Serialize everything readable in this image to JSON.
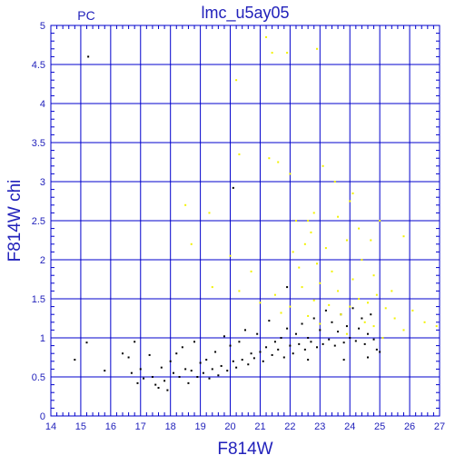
{
  "chart_data": {
    "type": "scatter",
    "title": "lmc_u5ay05",
    "corner_label": "PC",
    "xlabel": "F814W",
    "ylabel": "F814W  chi",
    "xlim": [
      14,
      27
    ],
    "ylim": [
      0,
      5
    ],
    "x_ticks": [
      "14",
      "15",
      "16",
      "17",
      "18",
      "19",
      "20",
      "21",
      "22",
      "23",
      "24",
      "25",
      "26",
      "27"
    ],
    "y_ticks": [
      "0",
      "0.5",
      "1",
      "1.5",
      "2",
      "2.5",
      "3",
      "3.5",
      "4",
      "4.5",
      "5"
    ],
    "grid": true,
    "colors": {
      "frame": "#0000cc",
      "label": "#2222bb",
      "series_black": "#000000",
      "series_yellow": "#f2f200"
    },
    "series": [
      {
        "color": "#000000",
        "points": [
          [
            15.25,
            4.6
          ],
          [
            20.1,
            2.92
          ],
          [
            15.2,
            0.94
          ],
          [
            14.8,
            0.72
          ],
          [
            15.8,
            0.58
          ],
          [
            16.4,
            0.8
          ],
          [
            16.6,
            0.75
          ],
          [
            16.8,
            0.95
          ],
          [
            16.7,
            0.55
          ],
          [
            16.9,
            0.42
          ],
          [
            17.0,
            0.6
          ],
          [
            17.1,
            0.48
          ],
          [
            17.3,
            0.78
          ],
          [
            17.4,
            0.5
          ],
          [
            17.5,
            0.4
          ],
          [
            17.6,
            0.36
          ],
          [
            17.7,
            0.62
          ],
          [
            17.8,
            0.45
          ],
          [
            17.9,
            0.33
          ],
          [
            18.0,
            0.7
          ],
          [
            18.1,
            0.55
          ],
          [
            18.2,
            0.8
          ],
          [
            18.3,
            0.5
          ],
          [
            18.4,
            0.88
          ],
          [
            18.5,
            0.6
          ],
          [
            18.6,
            0.42
          ],
          [
            18.7,
            0.58
          ],
          [
            18.8,
            0.95
          ],
          [
            18.9,
            0.5
          ],
          [
            19.0,
            0.68
          ],
          [
            19.1,
            0.55
          ],
          [
            19.2,
            0.72
          ],
          [
            19.3,
            0.48
          ],
          [
            19.4,
            0.6
          ],
          [
            19.5,
            0.82
          ],
          [
            19.6,
            0.52
          ],
          [
            19.7,
            0.64
          ],
          [
            19.8,
            1.02
          ],
          [
            19.9,
            0.58
          ],
          [
            20.0,
            0.9
          ],
          [
            20.1,
            0.7
          ],
          [
            20.2,
            0.62
          ],
          [
            20.3,
            0.95
          ],
          [
            20.4,
            0.72
          ],
          [
            20.5,
            1.1
          ],
          [
            20.6,
            0.66
          ],
          [
            20.7,
            0.8
          ],
          [
            20.8,
            0.74
          ],
          [
            20.9,
            1.05
          ],
          [
            21.0,
            0.82
          ],
          [
            21.1,
            0.7
          ],
          [
            21.2,
            0.88
          ],
          [
            21.3,
            1.22
          ],
          [
            21.4,
            0.78
          ],
          [
            21.5,
            0.95
          ],
          [
            21.6,
            0.85
          ],
          [
            21.7,
            1.0
          ],
          [
            21.8,
            0.75
          ],
          [
            21.9,
            1.12
          ],
          [
            22.0,
            0.9
          ],
          [
            22.1,
            0.8
          ],
          [
            22.2,
            1.05
          ],
          [
            22.3,
            0.92
          ],
          [
            22.4,
            1.18
          ],
          [
            22.5,
            0.85
          ],
          [
            22.6,
            1.0
          ],
          [
            22.7,
            0.95
          ],
          [
            22.8,
            1.25
          ],
          [
            22.9,
            0.88
          ],
          [
            23.0,
            1.1
          ],
          [
            23.1,
            0.92
          ],
          [
            23.2,
            1.35
          ],
          [
            23.3,
            0.98
          ],
          [
            23.4,
            1.2
          ],
          [
            23.5,
            0.9
          ],
          [
            23.6,
            1.08
          ],
          [
            23.7,
            1.3
          ],
          [
            23.8,
            0.94
          ],
          [
            23.9,
            1.15
          ],
          [
            24.0,
            1.0
          ],
          [
            24.1,
            1.38
          ],
          [
            24.2,
            0.96
          ],
          [
            24.3,
            1.12
          ],
          [
            24.4,
            1.25
          ],
          [
            24.5,
            0.92
          ],
          [
            24.6,
            1.05
          ],
          [
            24.7,
            1.3
          ],
          [
            24.8,
            0.98
          ],
          [
            24.9,
            0.85
          ],
          [
            25.0,
            0.82
          ],
          [
            21.9,
            1.65
          ],
          [
            22.6,
            0.72
          ],
          [
            23.8,
            0.72
          ],
          [
            24.6,
            0.75
          ]
        ]
      },
      {
        "color": "#f2f200",
        "points": [
          [
            21.2,
            4.85
          ],
          [
            21.9,
            4.65
          ],
          [
            22.9,
            4.7
          ],
          [
            21.4,
            4.65
          ],
          [
            20.2,
            4.3
          ],
          [
            20.3,
            3.35
          ],
          [
            21.3,
            3.3
          ],
          [
            21.6,
            3.25
          ],
          [
            22.0,
            3.1
          ],
          [
            23.1,
            3.2
          ],
          [
            23.5,
            3.0
          ],
          [
            24.1,
            2.85
          ],
          [
            24.0,
            2.75
          ],
          [
            18.5,
            2.7
          ],
          [
            19.3,
            2.6
          ],
          [
            22.2,
            2.5
          ],
          [
            22.6,
            2.5
          ],
          [
            22.8,
            2.6
          ],
          [
            23.6,
            2.55
          ],
          [
            24.3,
            2.4
          ],
          [
            25.0,
            2.5
          ],
          [
            25.8,
            2.3
          ],
          [
            18.7,
            2.2
          ],
          [
            20.0,
            2.05
          ],
          [
            22.1,
            2.1
          ],
          [
            22.5,
            2.2
          ],
          [
            22.7,
            2.35
          ],
          [
            23.2,
            2.15
          ],
          [
            23.9,
            2.25
          ],
          [
            24.4,
            2.0
          ],
          [
            24.7,
            2.25
          ],
          [
            20.7,
            1.85
          ],
          [
            22.3,
            1.9
          ],
          [
            22.9,
            1.95
          ],
          [
            23.4,
            1.85
          ],
          [
            24.1,
            1.75
          ],
          [
            24.8,
            1.8
          ],
          [
            19.4,
            1.65
          ],
          [
            20.3,
            1.6
          ],
          [
            21.5,
            1.55
          ],
          [
            22.4,
            1.65
          ],
          [
            23.0,
            1.7
          ],
          [
            23.6,
            1.6
          ],
          [
            24.3,
            1.5
          ],
          [
            24.9,
            1.55
          ],
          [
            25.4,
            1.6
          ],
          [
            21.0,
            1.45
          ],
          [
            22.0,
            1.4
          ],
          [
            22.8,
            1.48
          ],
          [
            23.3,
            1.42
          ],
          [
            24.0,
            1.4
          ],
          [
            24.6,
            1.45
          ],
          [
            25.2,
            1.38
          ],
          [
            26.1,
            1.35
          ],
          [
            26.5,
            1.2
          ],
          [
            26.9,
            1.15
          ],
          [
            25.8,
            1.1
          ],
          [
            25.5,
            1.25
          ],
          [
            23.7,
            1.3
          ],
          [
            24.5,
            1.2
          ],
          [
            22.6,
            1.28
          ],
          [
            21.7,
            1.32
          ],
          [
            23.0,
            1.18
          ],
          [
            25.1,
            1.0
          ],
          [
            24.8,
            1.15
          ],
          [
            23.9,
            1.05
          ]
        ]
      }
    ]
  }
}
